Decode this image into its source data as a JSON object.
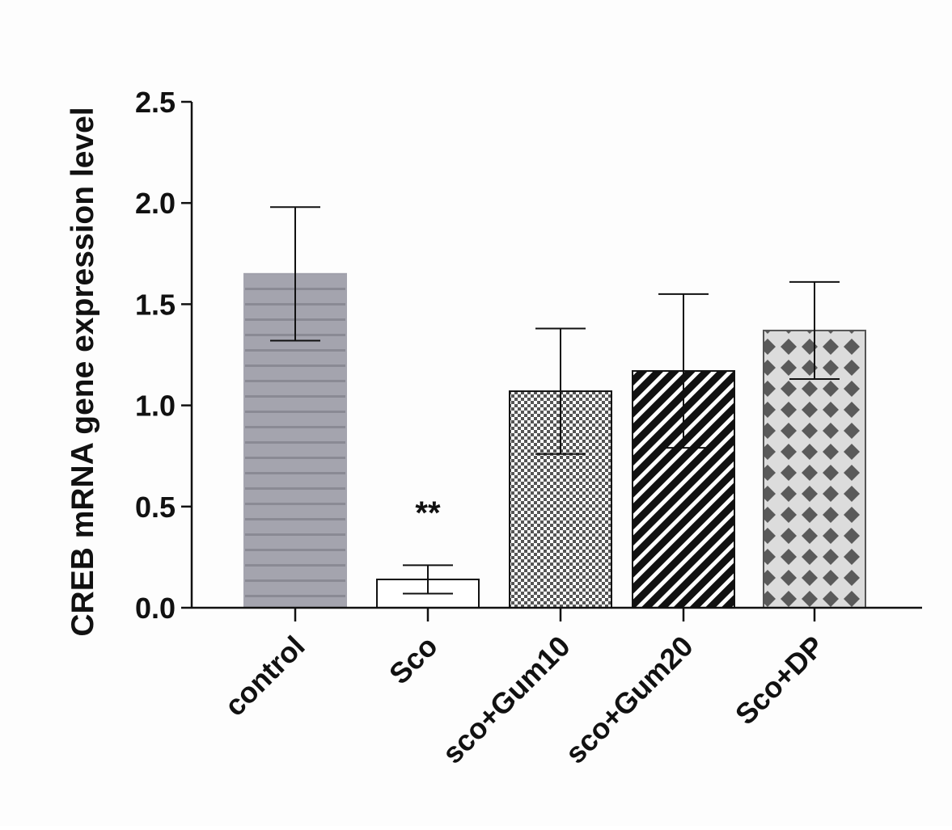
{
  "chart_data": {
    "type": "bar",
    "ylabel": "CREB mRNA gene expression level",
    "xlabel": "",
    "ylim": [
      0,
      2.5
    ],
    "yticks": [
      "0.0",
      "0.5",
      "1.0",
      "1.5",
      "2.0",
      "2.5"
    ],
    "categories": [
      "control",
      "Sco",
      "sco+Gum10",
      "sco+Gum20",
      "Sco+DP"
    ],
    "values": [
      1.65,
      0.14,
      1.07,
      1.17,
      1.37
    ],
    "errors": [
      0.33,
      0.07,
      0.31,
      0.38,
      0.24
    ],
    "annotations": [
      {
        "category": "Sco",
        "text": "**"
      }
    ],
    "patterns": [
      "horizontal-lines-gray",
      "white",
      "checkerboard",
      "diagonal-stripes",
      "diamond-lattice"
    ],
    "colors": {
      "control_fill": "#a4a4ae",
      "control_lines": "#8a8a94",
      "dark": "#111111",
      "lattice_fill": "#5a5a5a",
      "lattice_bg": "#dcdcdc"
    }
  }
}
